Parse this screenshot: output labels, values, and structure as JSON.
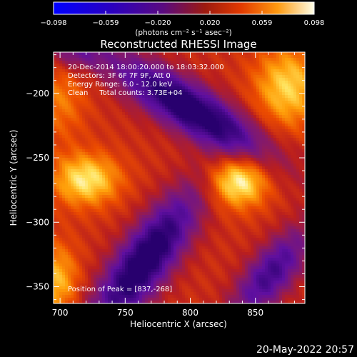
{
  "colorbar": {
    "ticks": [
      "−0.098",
      "−0.059",
      "−0.020",
      "0.020",
      "0.059",
      "0.098"
    ],
    "units": "(photons cm⁻² s⁻¹ asec⁻²)",
    "range": [
      -0.098,
      0.098
    ]
  },
  "chart_data": {
    "type": "heatmap",
    "title": "Reconstructed RHESSI Image",
    "xlabel": "Heliocentric X (arcsec)",
    "ylabel": "Heliocentric Y (arcsec)",
    "xlim": [
      695,
      888
    ],
    "ylim": [
      -363,
      -168
    ],
    "xticks": [
      700,
      750,
      800,
      850
    ],
    "xtick_labels": [
      "700",
      "750",
      "800",
      "850"
    ],
    "yticks": [
      -200,
      -250,
      -300,
      -350
    ],
    "ytick_labels": [
      "−200",
      "−250",
      "−300",
      "−350"
    ],
    "colormap": "rhessi-heat",
    "peak": {
      "x": 837,
      "y": -268
    },
    "bright_sources": [
      {
        "x": 837,
        "y": -268,
        "relative_intensity": 1.0
      },
      {
        "x": 720,
        "y": -267,
        "relative_intensity": 0.9
      },
      {
        "x": 875,
        "y": -195,
        "relative_intensity": 0.8
      },
      {
        "x": 697,
        "y": -345,
        "relative_intensity": 0.7
      }
    ],
    "annotations": [
      "20-Dec-2014 18:00:20.000 to 18:03:32.000",
      "Detectors: 3F 6F 7F 9F, Att 0",
      "Energy Range: 6.0 - 12.0 keV",
      "Clean     Total counts: 3.73E+04",
      "Position of Peak = [837,-268]"
    ]
  },
  "timestamp": "20-May-2022 20:57"
}
